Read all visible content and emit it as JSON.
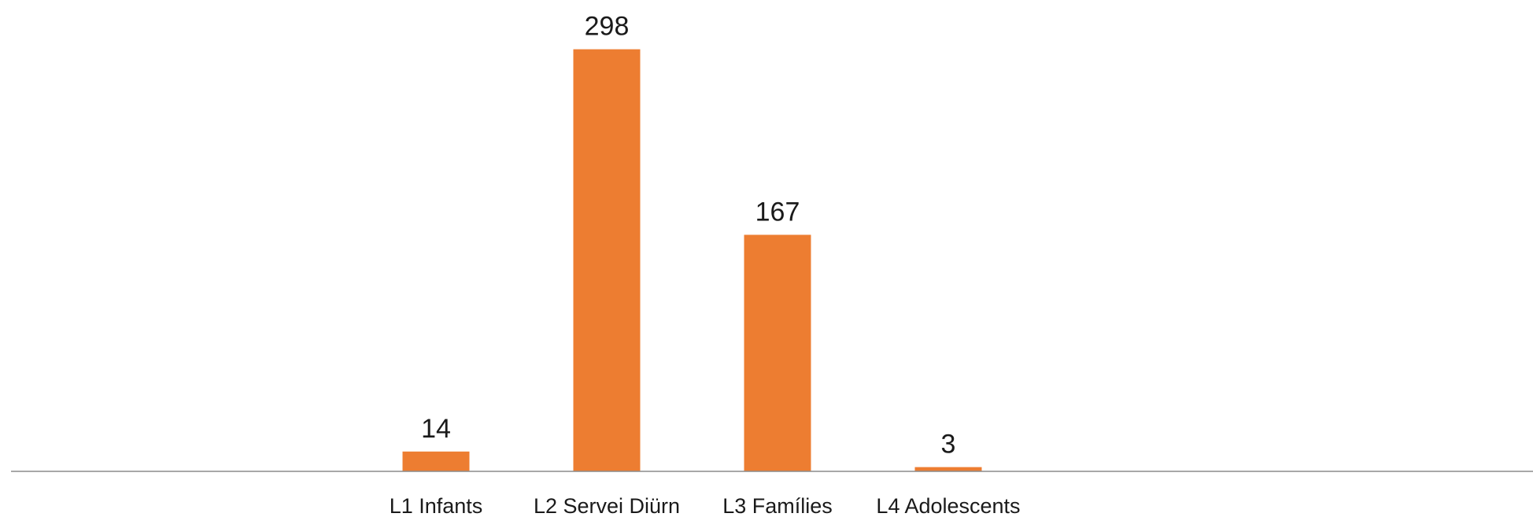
{
  "chart_data": {
    "type": "bar",
    "categories": [
      "L1 Infants",
      "L2 Servei Diürn",
      "L3 Famílies",
      "L4 Adolescents"
    ],
    "values": [
      14,
      298,
      167,
      3
    ],
    "data_labels": [
      "14",
      "298",
      "167",
      "3"
    ],
    "title": "",
    "xlabel": "",
    "ylabel": "",
    "ylim": [
      0,
      320
    ],
    "grid": false,
    "legend": "none",
    "bar_color": "#ED7D31",
    "axis_color": "#8C8C8C"
  }
}
